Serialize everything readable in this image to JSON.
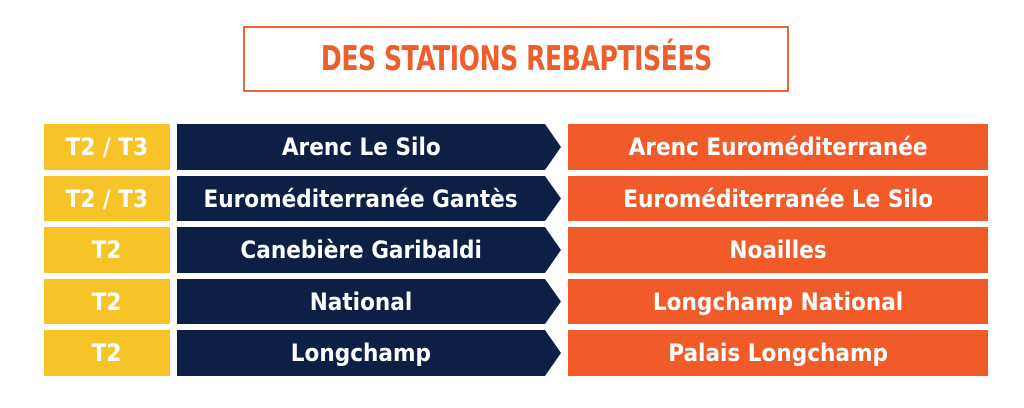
{
  "title": "DES STATIONS REBAPTISÉES",
  "colors": {
    "line": "#f6c428",
    "old_name": "#0d1f45",
    "new_name": "#f15a29",
    "title": "#ec5f2c"
  },
  "rows": [
    {
      "line": "T2 / T3",
      "old": "Arenc Le Silo",
      "new": "Arenc Euroméditerranée"
    },
    {
      "line": "T2 / T3",
      "old": "Euroméditerranée Gantès",
      "new": "Euroméditerranée Le Silo"
    },
    {
      "line": "T2",
      "old": "Canebière Garibaldi",
      "new": "Noailles"
    },
    {
      "line": "T2",
      "old": "National",
      "new": "Longchamp National"
    },
    {
      "line": "T2",
      "old": "Longchamp",
      "new": "Palais Longchamp"
    }
  ]
}
